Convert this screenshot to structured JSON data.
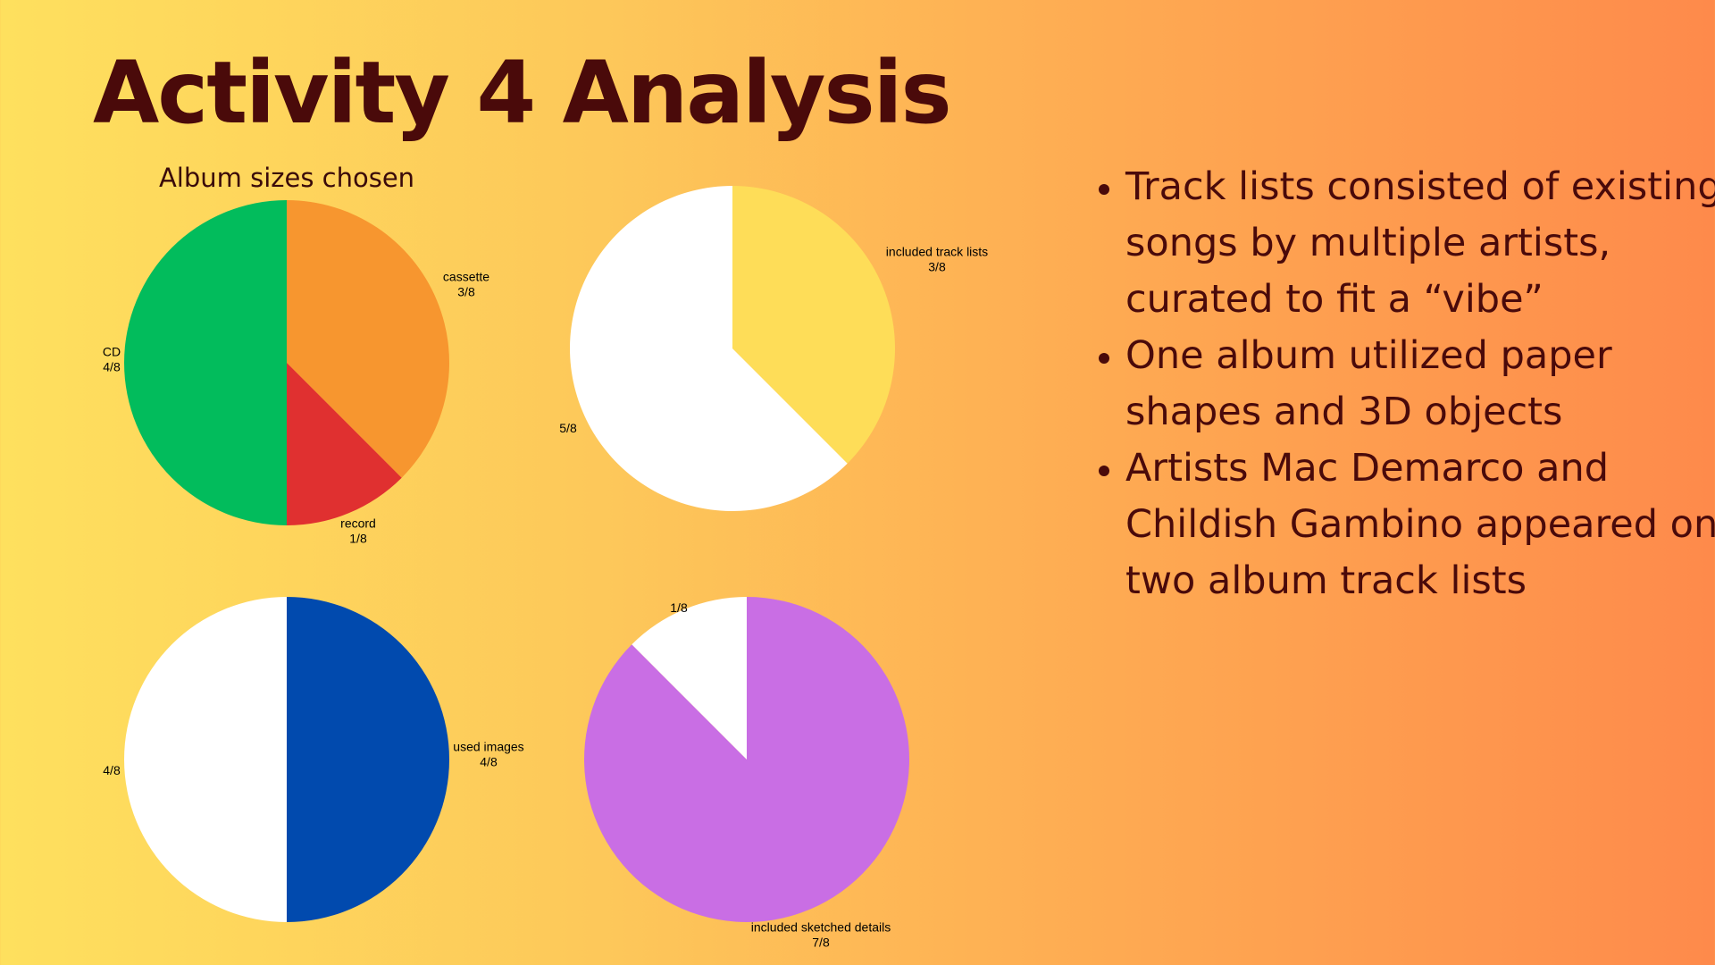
{
  "slide": {
    "title": "Activity 4 Analysis",
    "bullets": [
      "Track lists consisted of existing songs by multiple artists, curated to fit a “vibe”",
      "One album utilized paper shapes and 3D  objects",
      "Artists Mac Demarco and Childish Gambino appeared on two album track lists"
    ]
  },
  "colors": {
    "title_text": "#4a0a0a"
  },
  "chart_data": [
    {
      "type": "pie",
      "title": "Album sizes chosen",
      "slices": [
        {
          "label": "cassette",
          "value_label": "3/8",
          "value": 3,
          "color": "#f7962f"
        },
        {
          "label": "record",
          "value_label": "1/8",
          "value": 1,
          "color": "#e03030"
        },
        {
          "label": "CD",
          "value_label": "4/8",
          "value": 4,
          "color": "#02bc5c"
        }
      ]
    },
    {
      "type": "pie",
      "title": "",
      "slices": [
        {
          "label": "included track lists",
          "value_label": "3/8",
          "value": 3,
          "color": "#fedd58"
        },
        {
          "label": "",
          "value_label": "5/8",
          "value": 5,
          "color": "#ffffff"
        }
      ]
    },
    {
      "type": "pie",
      "title": "",
      "slices": [
        {
          "label": "used images",
          "value_label": "4/8",
          "value": 4,
          "color": "#014aae"
        },
        {
          "label": "",
          "value_label": "4/8",
          "value": 4,
          "color": "#ffffff"
        }
      ]
    },
    {
      "type": "pie",
      "title": "",
      "slices": [
        {
          "label": "included sketched details",
          "value_label": "7/8",
          "value": 7,
          "color": "#c96ee4"
        },
        {
          "label": "",
          "value_label": "1/8",
          "value": 1,
          "color": "#ffffff"
        }
      ]
    }
  ]
}
